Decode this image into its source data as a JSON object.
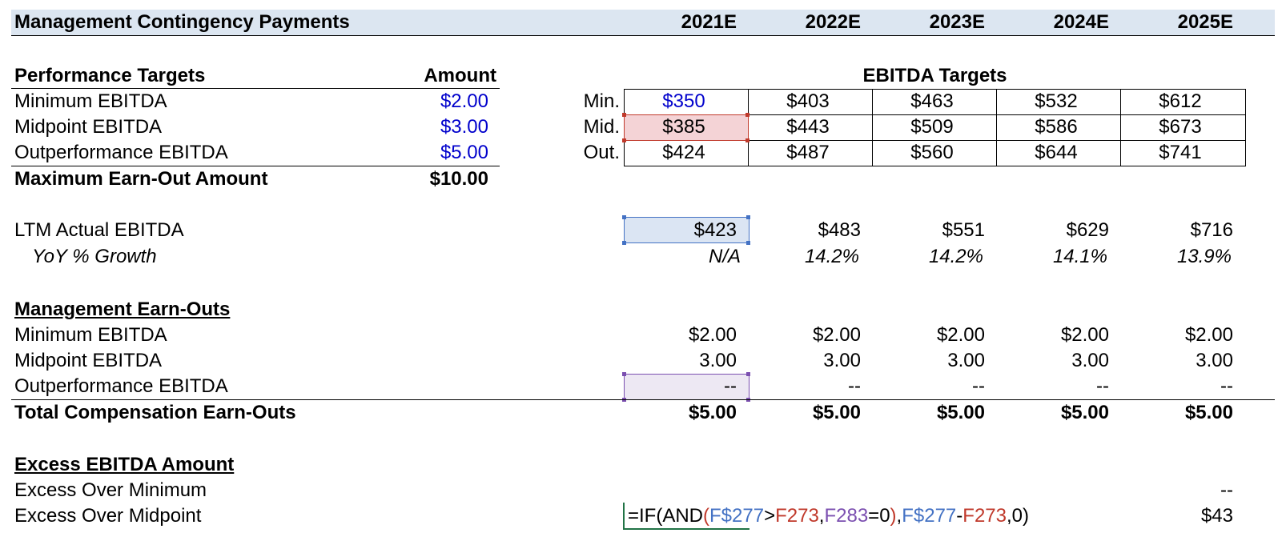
{
  "header": {
    "title": "Management Contingency Payments",
    "years": [
      "2021E",
      "2022E",
      "2023E",
      "2024E",
      "2025E"
    ]
  },
  "targets": {
    "heading": "Performance Targets",
    "amount_heading": "Amount",
    "rows": [
      {
        "label": "Minimum EBITDA",
        "amount": "$2.00"
      },
      {
        "label": "Midpoint EBITDA",
        "amount": "$3.00"
      },
      {
        "label": "Outperformance EBITDA",
        "amount": "$5.00"
      }
    ],
    "max_label": "Maximum Earn-Out Amount",
    "max_amount": "$10.00"
  },
  "ebitda_targets": {
    "heading": "EBITDA Targets",
    "rows": [
      {
        "tag": "Min.",
        "values": [
          "$350",
          "$403",
          "$463",
          "$532",
          "$612"
        ]
      },
      {
        "tag": "Mid.",
        "values": [
          "$385",
          "$443",
          "$509",
          "$586",
          "$673"
        ]
      },
      {
        "tag": "Out.",
        "values": [
          "$424",
          "$487",
          "$560",
          "$644",
          "$741"
        ]
      }
    ]
  },
  "ltm": {
    "label": "LTM Actual EBITDA",
    "values": [
      "$423",
      "$483",
      "$551",
      "$629",
      "$716"
    ],
    "growth_label": "YoY % Growth",
    "growth": [
      "N/A",
      "14.2%",
      "14.2%",
      "14.1%",
      "13.9%"
    ]
  },
  "earnouts": {
    "heading": "Management Earn-Outs",
    "rows": [
      {
        "label": "Minimum EBITDA",
        "values": [
          "$2.00",
          "$2.00",
          "$2.00",
          "$2.00",
          "$2.00"
        ]
      },
      {
        "label": "Midpoint EBITDA",
        "values": [
          "3.00",
          "3.00",
          "3.00",
          "3.00",
          "3.00"
        ]
      },
      {
        "label": "Outperformance EBITDA",
        "values": [
          "--",
          "--",
          "--",
          "--",
          "--"
        ]
      }
    ],
    "total_label": "Total Compensation Earn-Outs",
    "totals": [
      "$5.00",
      "$5.00",
      "$5.00",
      "$5.00",
      "$5.00"
    ]
  },
  "excess": {
    "heading": "Excess EBITDA Amount",
    "over_min_label": "Excess Over Minimum",
    "over_min_last": "--",
    "over_mid_label": "Excess Over Midpoint",
    "over_mid_last": "$43",
    "formula_parts": [
      {
        "text": "=IF(AND",
        "color": "#000000"
      },
      {
        "text": "(",
        "color": "#c0392b"
      },
      {
        "text": "F$277",
        "color": "#4472c4"
      },
      {
        "text": ">",
        "color": "#000000"
      },
      {
        "text": "F273",
        "color": "#c0392b"
      },
      {
        "text": ",",
        "color": "#000000"
      },
      {
        "text": "F283",
        "color": "#7b4fb0"
      },
      {
        "text": "=0",
        "color": "#000000"
      },
      {
        "text": ")",
        "color": "#c0392b"
      },
      {
        "text": ",",
        "color": "#000000"
      },
      {
        "text": "F$277",
        "color": "#4472c4"
      },
      {
        "text": "-",
        "color": "#000000"
      },
      {
        "text": "F273",
        "color": "#c0392b"
      },
      {
        "text": ",0)",
        "color": "#000000"
      }
    ]
  },
  "colors": {
    "header_band": "#dce6f1",
    "input_blue": "#0000cc",
    "ref_red_fill": "#f4d3d6",
    "ref_blue_fill": "#dbe5f3",
    "ref_purple_fill": "#ede8f3"
  }
}
